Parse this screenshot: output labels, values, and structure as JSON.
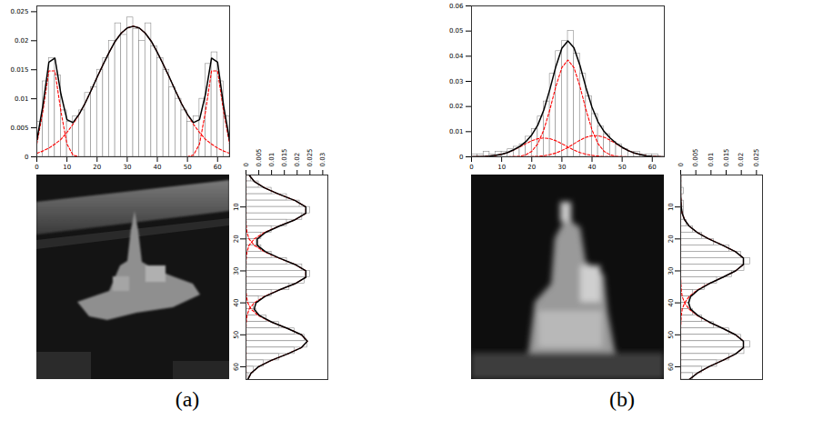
{
  "chart_data": [
    {
      "type": "histogram",
      "annotations": [
        "(a)"
      ],
      "bins": [
        0,
        2,
        4,
        6,
        8,
        10,
        12,
        14,
        16,
        18,
        20,
        22,
        24,
        26,
        28,
        30,
        32,
        34,
        36,
        38,
        40,
        42,
        44,
        46,
        48,
        50,
        52,
        54,
        56,
        58,
        60,
        62,
        64
      ],
      "counts": [
        0.006,
        0.013,
        0.017,
        0.014,
        0.008,
        0.006,
        0.007,
        0.008,
        0.011,
        0.012,
        0.015,
        0.017,
        0.02,
        0.023,
        0.021,
        0.024,
        0.022,
        0.02,
        0.023,
        0.019,
        0.017,
        0.015,
        0.012,
        0.01,
        0.008,
        0.006,
        0.007,
        0.01,
        0.016,
        0.018,
        0.013,
        0.007
      ],
      "color": "#ffffff",
      "positions": [
        0,
        2,
        4,
        6,
        8,
        10,
        12,
        14,
        16,
        18,
        20,
        22,
        24,
        26,
        28,
        30,
        32,
        34,
        36,
        38,
        40,
        42,
        44,
        46,
        48,
        50,
        52,
        54,
        56,
        58,
        60,
        62,
        64
      ],
      "series": [
        {
          "type": "line",
          "color": "#ff0000",
          "line_style": "dashed",
          "values": [
            0.0022,
            0.0078,
            0.0148,
            0.0148,
            0.0078,
            0.0022,
            0.0003,
            0,
            0,
            0,
            0,
            0,
            0,
            0,
            0,
            0,
            0,
            0,
            0,
            0,
            0,
            0,
            0,
            0,
            0,
            0,
            0,
            0,
            0,
            0,
            0,
            0,
            0
          ]
        },
        {
          "type": "line",
          "color": "#ff0000",
          "line_style": "dashed",
          "values": [
            0.0006,
            0.001,
            0.0015,
            0.0022,
            0.003,
            0.0042,
            0.0056,
            0.0073,
            0.0092,
            0.0114,
            0.0137,
            0.0159,
            0.018,
            0.0199,
            0.0213,
            0.0222,
            0.0225,
            0.0222,
            0.0213,
            0.0199,
            0.018,
            0.0159,
            0.0137,
            0.0114,
            0.0092,
            0.0073,
            0.0056,
            0.0042,
            0.003,
            0.0022,
            0.0015,
            0.001,
            0.0006
          ]
        },
        {
          "type": "line",
          "color": "#ff0000",
          "line_style": "dashed",
          "values": [
            0,
            0,
            0,
            0,
            0,
            0,
            0,
            0,
            0,
            0,
            0,
            0,
            0,
            0,
            0,
            0,
            0,
            0,
            0,
            0,
            0,
            0,
            0,
            0,
            0,
            0,
            0.0003,
            0.0022,
            0.0078,
            0.0148,
            0.0148,
            0.0078,
            0.0022
          ]
        },
        {
          "type": "line",
          "color": "#000000",
          "line_style": "solid",
          "values": [
            0.0028,
            0.0088,
            0.0163,
            0.017,
            0.0108,
            0.0064,
            0.0059,
            0.0073,
            0.0092,
            0.0114,
            0.0137,
            0.0159,
            0.018,
            0.0199,
            0.0213,
            0.0222,
            0.0225,
            0.0222,
            0.0213,
            0.0199,
            0.018,
            0.0159,
            0.0137,
            0.0114,
            0.0092,
            0.0073,
            0.0059,
            0.0064,
            0.0108,
            0.017,
            0.0163,
            0.0088,
            0.0028
          ]
        }
      ],
      "xlim": [
        0,
        64
      ],
      "xticks": [
        0,
        10,
        20,
        30,
        40,
        50,
        60
      ],
      "ylim": [
        0,
        0.026
      ],
      "yticks": [
        0,
        0.005,
        0.01,
        0.015,
        0.02,
        0.025
      ]
    },
    {
      "type": "histogram",
      "orientation": "horizontal",
      "bins": [
        0,
        2,
        4,
        6,
        8,
        10,
        12,
        14,
        16,
        18,
        20,
        22,
        24,
        26,
        28,
        30,
        32,
        34,
        36,
        38,
        40,
        42,
        44,
        46,
        48,
        50,
        52,
        54,
        56,
        58,
        60,
        62,
        64
      ],
      "counts": [
        0.002,
        0.005,
        0.01,
        0.016,
        0.021,
        0.025,
        0.022,
        0.016,
        0.01,
        0.006,
        0.004,
        0.006,
        0.01,
        0.016,
        0.022,
        0.025,
        0.023,
        0.017,
        0.01,
        0.005,
        0.003,
        0.004,
        0.008,
        0.013,
        0.019,
        0.023,
        0.024,
        0.019,
        0.013,
        0.007,
        0.003,
        0.001
      ],
      "color": "#ffffff",
      "positions": [
        0,
        2,
        4,
        6,
        8,
        10,
        12,
        14,
        16,
        18,
        20,
        22,
        24,
        26,
        28,
        30,
        32,
        34,
        36,
        38,
        40,
        42,
        44,
        46,
        48,
        50,
        52,
        54,
        56,
        58,
        60,
        62,
        64
      ],
      "series": [
        {
          "type": "line",
          "color": "#ff0000",
          "line_style": "dashed",
          "values": [
            0.0012,
            0.0032,
            0.0072,
            0.0129,
            0.0192,
            0.0234,
            0.0234,
            0.0192,
            0.0129,
            0.0072,
            0.0032,
            0.0012,
            0.0004,
            0.0001,
            0,
            0,
            0,
            0,
            0,
            0,
            0,
            0,
            0,
            0,
            0,
            0,
            0,
            0,
            0,
            0,
            0,
            0,
            0
          ]
        },
        {
          "type": "line",
          "color": "#ff0000",
          "line_style": "dashed",
          "values": [
            0,
            0,
            0,
            0,
            0,
            0,
            0,
            0,
            0.0001,
            0.0004,
            0.0012,
            0.0032,
            0.0072,
            0.0129,
            0.0192,
            0.0234,
            0.0234,
            0.0192,
            0.0129,
            0.0072,
            0.0032,
            0.0012,
            0.0004,
            0.0001,
            0,
            0,
            0,
            0,
            0,
            0,
            0,
            0,
            0
          ]
        },
        {
          "type": "line",
          "color": "#ff0000",
          "line_style": "dashed",
          "values": [
            0,
            0,
            0,
            0,
            0,
            0,
            0,
            0,
            0,
            0,
            0,
            0,
            0,
            0,
            0,
            0,
            0,
            0,
            0,
            0.0002,
            0.0007,
            0.002,
            0.0049,
            0.0099,
            0.0162,
            0.0217,
            0.024,
            0.0217,
            0.0162,
            0.0099,
            0.0049,
            0.002,
            0.0007
          ]
        },
        {
          "type": "line",
          "color": "#000000",
          "line_style": "solid",
          "values": [
            0.0012,
            0.0032,
            0.0072,
            0.0129,
            0.0192,
            0.0234,
            0.0234,
            0.0192,
            0.013,
            0.0076,
            0.0044,
            0.0044,
            0.0076,
            0.013,
            0.0192,
            0.0234,
            0.0234,
            0.0192,
            0.0129,
            0.0074,
            0.0039,
            0.0032,
            0.0053,
            0.01,
            0.0162,
            0.0217,
            0.024,
            0.0217,
            0.0162,
            0.0099,
            0.0049,
            0.002,
            0.0007
          ]
        }
      ],
      "xlim": [
        0,
        0.032
      ],
      "xticks": [
        0,
        0.005,
        0.01,
        0.015,
        0.02,
        0.025,
        0.03
      ],
      "ylim": [
        0,
        64
      ],
      "yticks": [
        10,
        20,
        30,
        40,
        50,
        60
      ]
    },
    {
      "type": "histogram",
      "annotations": [
        "(b)"
      ],
      "bins": [
        0,
        2,
        4,
        6,
        8,
        10,
        12,
        14,
        16,
        18,
        20,
        22,
        24,
        26,
        28,
        30,
        32,
        34,
        36,
        38,
        40,
        42,
        44,
        46,
        48,
        50,
        52,
        54,
        56,
        58,
        60,
        62,
        64
      ],
      "counts": [
        0.001,
        0.001,
        0.002,
        0.001,
        0.002,
        0.002,
        0.003,
        0.004,
        0.005,
        0.008,
        0.011,
        0.016,
        0.022,
        0.033,
        0.042,
        0.046,
        0.05,
        0.041,
        0.033,
        0.024,
        0.017,
        0.012,
        0.009,
        0.006,
        0.005,
        0.003,
        0.002,
        0.002,
        0.001,
        0.001,
        0.001,
        0.0
      ],
      "color": "#ffffff",
      "positions": [
        0,
        2,
        4,
        6,
        8,
        10,
        12,
        14,
        16,
        18,
        20,
        22,
        24,
        26,
        28,
        30,
        32,
        34,
        36,
        38,
        40,
        42,
        44,
        46,
        48,
        50,
        52,
        54,
        56,
        58,
        60,
        62,
        64
      ],
      "series": [
        {
          "type": "line",
          "color": "#ff0000",
          "line_style": "dashed",
          "values": [
            0,
            0,
            0,
            0,
            0,
            0,
            0,
            0.0001,
            0.0002,
            0.0008,
            0.0022,
            0.0052,
            0.0107,
            0.0187,
            0.028,
            0.0355,
            0.0385,
            0.0355,
            0.028,
            0.0187,
            0.0107,
            0.0052,
            0.0022,
            0.0008,
            0.0002,
            0.0001,
            0,
            0,
            0,
            0,
            0,
            0,
            0
          ]
        },
        {
          "type": "line",
          "color": "#ff0000",
          "line_style": "dashed",
          "values": [
            0,
            0.0001,
            0.0001,
            0.0003,
            0.0006,
            0.001,
            0.0017,
            0.0027,
            0.0039,
            0.0052,
            0.0064,
            0.0072,
            0.0075,
            0.0072,
            0.0064,
            0.0052,
            0.0039,
            0.0027,
            0.0017,
            0.001,
            0.0006,
            0.0003,
            0.0001,
            0.0001,
            0,
            0,
            0,
            0,
            0,
            0,
            0,
            0,
            0
          ]
        },
        {
          "type": "line",
          "color": "#ff0000",
          "line_style": "dashed",
          "values": [
            0,
            0,
            0,
            0,
            0,
            0,
            0,
            0,
            0,
            0,
            0.0001,
            0.0002,
            0.0004,
            0.0009,
            0.0015,
            0.0025,
            0.0037,
            0.0052,
            0.0066,
            0.0078,
            0.0084,
            0.0084,
            0.0078,
            0.0066,
            0.0052,
            0.0037,
            0.0025,
            0.0015,
            0.0009,
            0.0004,
            0.0002,
            0.0001,
            0
          ]
        },
        {
          "type": "line",
          "color": "#000000",
          "line_style": "solid",
          "values": [
            0,
            0.0001,
            0.0001,
            0.0003,
            0.0006,
            0.001,
            0.0017,
            0.0028,
            0.0041,
            0.006,
            0.0087,
            0.0126,
            0.0186,
            0.0268,
            0.0359,
            0.0432,
            0.0461,
            0.0434,
            0.0363,
            0.0275,
            0.0197,
            0.0139,
            0.0101,
            0.0075,
            0.0054,
            0.0038,
            0.0025,
            0.0015,
            0.0009,
            0.0004,
            0.0002,
            0.0001,
            0
          ]
        }
      ],
      "xlim": [
        0,
        64
      ],
      "xticks": [
        0,
        10,
        20,
        30,
        40,
        50,
        60
      ],
      "ylim": [
        0,
        0.06
      ],
      "yticks": [
        0,
        0.01,
        0.02,
        0.03,
        0.04,
        0.05,
        0.06
      ]
    },
    {
      "type": "histogram",
      "orientation": "horizontal",
      "bins": [
        0,
        2,
        4,
        6,
        8,
        10,
        12,
        14,
        16,
        18,
        20,
        22,
        24,
        26,
        28,
        30,
        32,
        34,
        36,
        38,
        40,
        42,
        44,
        46,
        48,
        50,
        52,
        54,
        56,
        58,
        60,
        62,
        64
      ],
      "counts": [
        0.0,
        0.0,
        0.001,
        0.0,
        0.001,
        0.001,
        0.001,
        0.002,
        0.004,
        0.007,
        0.011,
        0.016,
        0.02,
        0.023,
        0.021,
        0.017,
        0.012,
        0.008,
        0.004,
        0.003,
        0.003,
        0.004,
        0.007,
        0.011,
        0.016,
        0.02,
        0.023,
        0.021,
        0.016,
        0.012,
        0.007,
        0.004
      ],
      "color": "#ffffff",
      "positions": [
        0,
        2,
        4,
        6,
        8,
        10,
        12,
        14,
        16,
        18,
        20,
        22,
        24,
        26,
        28,
        30,
        32,
        34,
        36,
        38,
        40,
        42,
        44,
        46,
        48,
        50,
        52,
        54,
        56,
        58,
        60,
        62,
        64
      ],
      "series": [
        {
          "type": "line",
          "color": "#ff0000",
          "line_style": "dashed",
          "values": [
            0,
            0,
            0,
            0,
            0.0001,
            0.0002,
            0.0005,
            0.0013,
            0.0028,
            0.0055,
            0.0093,
            0.0139,
            0.0181,
            0.0207,
            0.0207,
            0.0181,
            0.0139,
            0.0093,
            0.0055,
            0.0028,
            0.0013,
            0.0005,
            0.0002,
            0.0001,
            0,
            0,
            0,
            0,
            0,
            0,
            0,
            0,
            0
          ]
        },
        {
          "type": "line",
          "color": "#ff0000",
          "line_style": "dashed",
          "values": [
            0,
            0,
            0,
            0,
            0,
            0,
            0,
            0,
            0,
            0,
            0,
            0,
            0,
            0,
            0,
            0,
            0,
            0.0001,
            0.0002,
            0.0005,
            0.0013,
            0.0028,
            0.0055,
            0.0093,
            0.0139,
            0.0181,
            0.0207,
            0.0207,
            0.0181,
            0.0139,
            0.0093,
            0.0055,
            0.0028
          ]
        },
        {
          "type": "line",
          "color": "#000000",
          "line_style": "solid",
          "values": [
            0,
            0,
            0,
            0,
            0.0001,
            0.0002,
            0.0005,
            0.0013,
            0.0028,
            0.0055,
            0.0093,
            0.0139,
            0.0181,
            0.0207,
            0.0207,
            0.0181,
            0.0139,
            0.0094,
            0.0057,
            0.0033,
            0.0026,
            0.0033,
            0.0057,
            0.0094,
            0.0139,
            0.0181,
            0.0207,
            0.0207,
            0.0181,
            0.0139,
            0.0093,
            0.0055,
            0.0028
          ]
        }
      ],
      "xlim": [
        0,
        0.027
      ],
      "xticks": [
        0,
        0.005,
        0.01,
        0.015,
        0.02,
        0.025
      ],
      "ylim": [
        0,
        64
      ],
      "yticks": [
        10,
        20,
        30,
        40,
        50,
        60
      ]
    }
  ]
}
